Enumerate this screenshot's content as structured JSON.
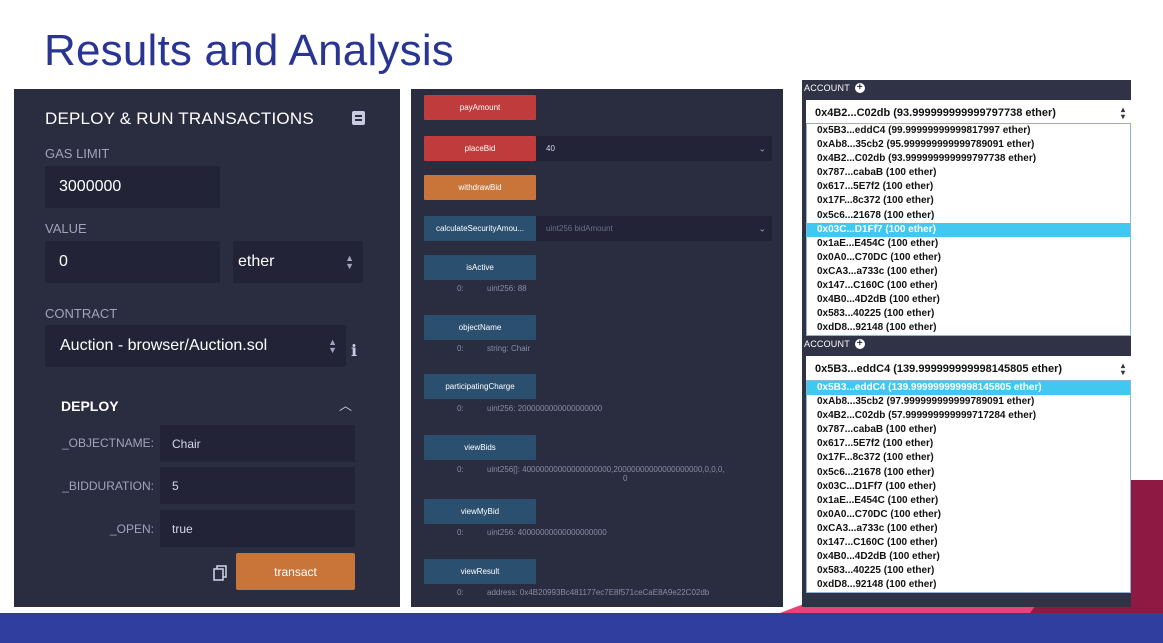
{
  "slide": {
    "title": "Results and Analysis"
  },
  "deploy_panel": {
    "header": "DEPLOY & RUN TRANSACTIONS",
    "gas_limit_label": "GAS LIMIT",
    "gas_limit_value": "3000000",
    "value_label": "VALUE",
    "value_amount": "0",
    "value_unit": "ether",
    "contract_label": "CONTRACT",
    "contract_value": "Auction - browser/Auction.sol",
    "deploy_title": "DEPLOY",
    "params": [
      {
        "label": "_OBJECTNAME:",
        "value": "Chair"
      },
      {
        "label": "_BIDDURATION:",
        "value": "5"
      },
      {
        "label": "_OPEN:",
        "value": "true"
      }
    ],
    "transact_label": "transact"
  },
  "functions_panel": {
    "pay_amount": "payAmount",
    "place_bid": "placeBid",
    "place_bid_value": "40",
    "withdraw_bid": "withdrawBid",
    "calc_security": "calculateSecurityAmou...",
    "calc_security_placeholder": "uint256 bidAmount",
    "outputs": [
      {
        "name": "isActive",
        "index": "0:",
        "value": "uint256: 88"
      },
      {
        "name": "objectName",
        "index": "0:",
        "value": "string: Chair"
      },
      {
        "name": "participatingCharge",
        "index": "0:",
        "value": "uint256: 2000000000000000000"
      },
      {
        "name": "viewBids",
        "index": "0:",
        "value": "uint256[]: 40000000000000000000,20000000000000000000,0,0,0,",
        "value2": "0"
      },
      {
        "name": "viewMyBid",
        "index": "0:",
        "value": "uint256: 40000000000000000000"
      },
      {
        "name": "viewResult",
        "index": "0:",
        "value": "address: 0x4B20993Bc481177ec7E8f571ceCaE8A9e22C02db"
      }
    ]
  },
  "accounts": {
    "label": "ACCOUNT",
    "top": {
      "selected": "0x4B2...C02db (93.999999999999797738 ether)",
      "items": [
        "0x5B3...eddC4 (99.99999999999817997 ether)",
        "0xAb8...35cb2 (95.999999999999789091 ether)",
        "0x4B2...C02db (93.999999999999797738 ether)",
        "0x787...cabaB (100 ether)",
        "0x617...5E7f2 (100 ether)",
        "0x17F...8c372 (100 ether)",
        "0x5c6...21678 (100 ether)",
        "0x03C...D1Ff7 (100 ether)",
        "0x1aE...E454C (100 ether)",
        "0x0A0...C70DC (100 ether)",
        "0xCA3...a733c (100 ether)",
        "0x147...C160C (100 ether)",
        "0x4B0...4D2dB (100 ether)",
        "0x583...40225 (100 ether)",
        "0xdD8...92148 (100 ether)"
      ]
    },
    "bottom": {
      "selected": "0x5B3...eddC4 (139.999999999998145805 ether)",
      "items": [
        "0x5B3...eddC4 (139.999999999998145805 ether)",
        "0xAb8...35cb2 (97.999999999999789091 ether)",
        "0x4B2...C02db (57.999999999999717284 ether)",
        "0x787...cabaB (100 ether)",
        "0x617...5E7f2 (100 ether)",
        "0x17F...8c372 (100 ether)",
        "0x5c6...21678 (100 ether)",
        "0x03C...D1Ff7 (100 ether)",
        "0x1aE...E454C (100 ether)",
        "0x0A0...C70DC (100 ether)",
        "0xCA3...a733c (100 ether)",
        "0x147...C160C (100 ether)",
        "0x4B0...4D2dB (100 ether)",
        "0x583...40225 (100 ether)",
        "0xdD8...92148 (100 ether)"
      ]
    }
  }
}
